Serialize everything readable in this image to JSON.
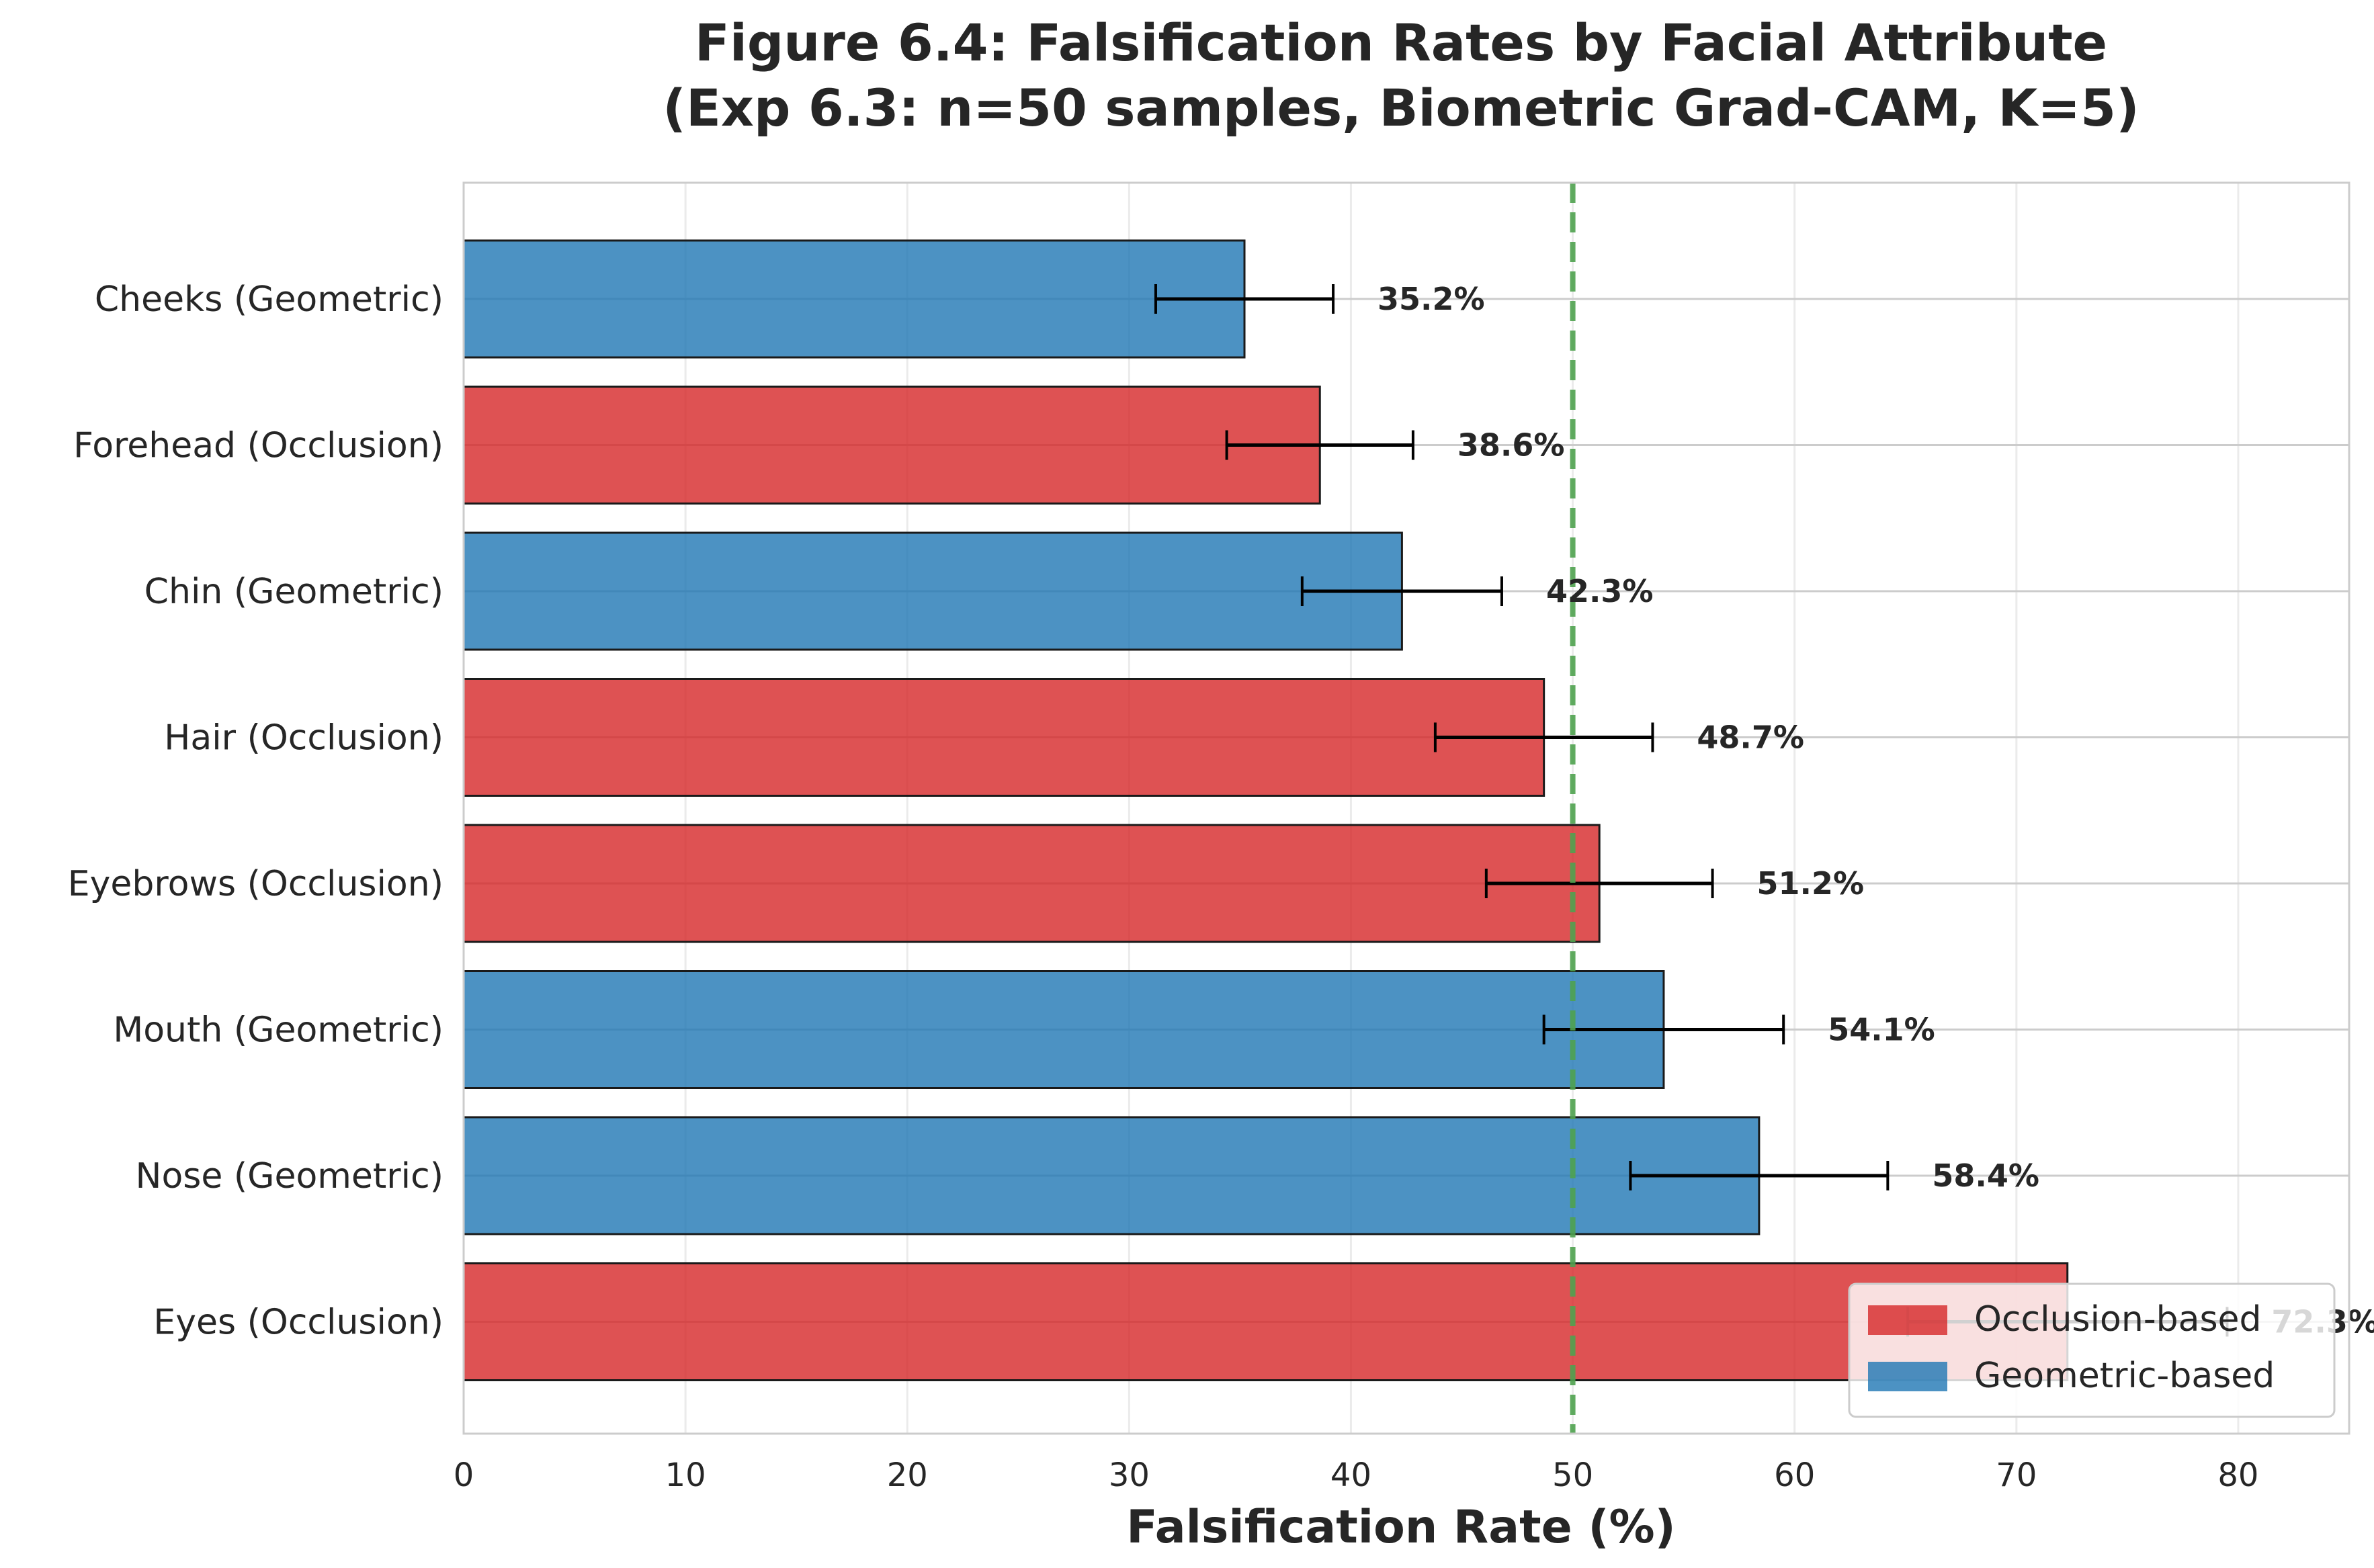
{
  "chart_data": {
    "type": "bar",
    "orientation": "horizontal",
    "title": "Figure 6.4: Falsification Rates by Facial Attribute",
    "subtitle": "(Exp 6.3: n=50 samples, Biometric Grad-CAM, K=5)",
    "xlabel": "Falsification Rate (%)",
    "ylabel": "",
    "xlim": [
      0,
      85
    ],
    "xticks": [
      0,
      10,
      20,
      30,
      40,
      50,
      60,
      70,
      80
    ],
    "grid": true,
    "reference_line": {
      "value": 50,
      "style": "dashed",
      "color": "#4fa24f"
    },
    "categories": [
      "Cheeks (Geometric)",
      "Forehead (Occlusion)",
      "Chin (Geometric)",
      "Hair (Occlusion)",
      "Eyebrows (Occlusion)",
      "Mouth (Geometric)",
      "Nose (Geometric)",
      "Eyes (Occlusion)"
    ],
    "values": [
      35.2,
      38.6,
      42.3,
      48.7,
      51.2,
      54.1,
      58.4,
      72.3
    ],
    "errors": [
      4.0,
      4.2,
      4.5,
      4.9,
      5.1,
      5.4,
      5.8,
      7.2
    ],
    "types": [
      "geometric",
      "occlusion",
      "geometric",
      "occlusion",
      "occlusion",
      "geometric",
      "geometric",
      "occlusion"
    ],
    "data_labels": [
      "35.2%",
      "38.6%",
      "42.3%",
      "48.7%",
      "51.2%",
      "54.1%",
      "58.4%",
      "72.3%"
    ],
    "colors": {
      "occlusion": "#d62728",
      "geometric": "#1f77b4"
    },
    "legend": {
      "placement": "lower-right",
      "items": [
        {
          "key": "occlusion",
          "label": "Occlusion-based"
        },
        {
          "key": "geometric",
          "label": "Geometric-based"
        }
      ]
    }
  }
}
